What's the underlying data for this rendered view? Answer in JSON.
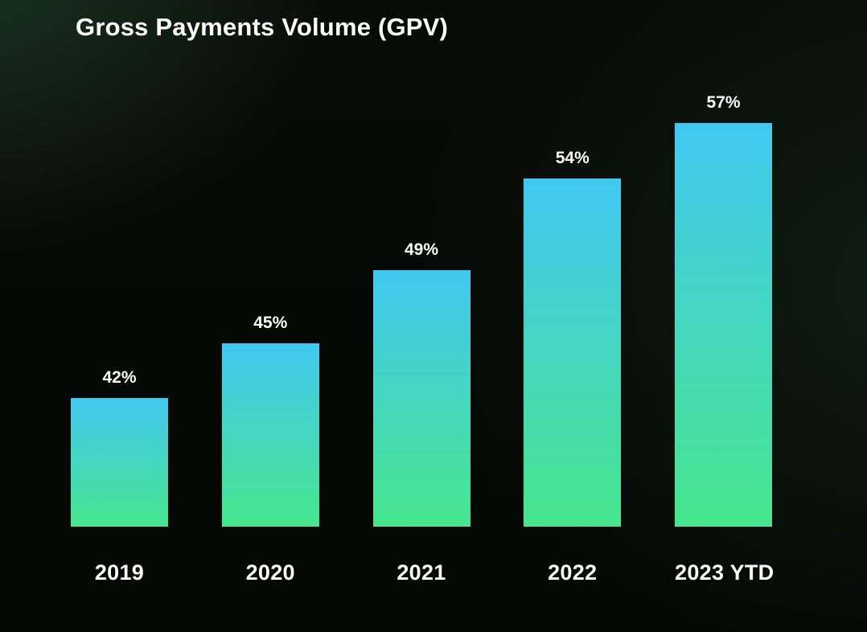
{
  "title": "Gross Payments Volume (GPV)",
  "chart_data": {
    "type": "bar",
    "title": "Gross Payments Volume (GPV)",
    "categories": [
      "2019",
      "2020",
      "2021",
      "2022",
      "2023 YTD"
    ],
    "values": [
      42,
      45,
      49,
      54,
      57
    ],
    "value_labels": [
      "42%",
      "45%",
      "49%",
      "54%",
      "57%"
    ],
    "xlabel": "",
    "ylabel": "",
    "ylim": [
      35,
      60
    ],
    "grid": false,
    "legend": "none",
    "colors": {
      "bar_gradient_top": "#41c8f1",
      "bar_gradient_bottom": "#46e68d",
      "label_color": "#ffffff",
      "background": "#060a07"
    }
  }
}
